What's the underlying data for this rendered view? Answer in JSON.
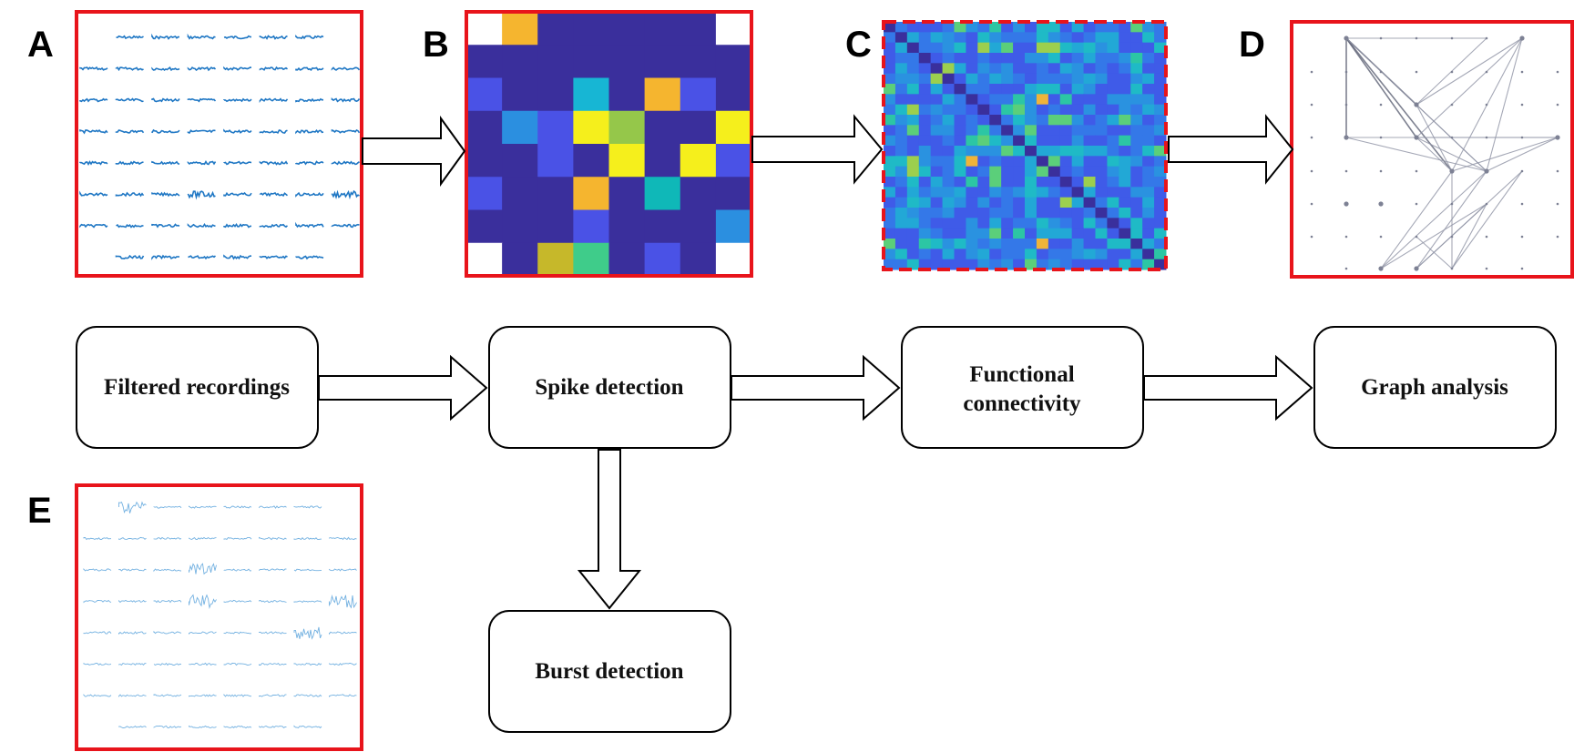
{
  "panels": {
    "a": {
      "letter": "A"
    },
    "b": {
      "letter": "B"
    },
    "c": {
      "letter": "C"
    },
    "d": {
      "letter": "D"
    },
    "e": {
      "letter": "E"
    }
  },
  "steps": {
    "filtered": {
      "label": "Filtered recordings"
    },
    "spike": {
      "label": "Spike detection"
    },
    "functional": {
      "line1": "Functional",
      "line2": "connectivity"
    },
    "graph": {
      "label": "Graph analysis"
    },
    "burst": {
      "label": "Burst detection"
    }
  },
  "colors": {
    "frame_red": "#e8141b",
    "trace_blue": "#1f77c4",
    "heat_dark": "#3a2f9c",
    "heat_blue": "#4a52e6",
    "heat_sky": "#2b8fe0",
    "heat_cyan": "#17b6d4",
    "heat_teal": "#0fb8b8",
    "heat_green": "#3fcc8a",
    "heat_lime": "#95c74a",
    "heat_olive": "#c6b82a",
    "heat_orange": "#f5b52f",
    "heat_yellow": "#f5ef1c",
    "graph_edge": "#8f93a5",
    "graph_node": "#7d8194"
  },
  "icons": [
    "right-arrow-icon",
    "down-arrow-icon"
  ]
}
